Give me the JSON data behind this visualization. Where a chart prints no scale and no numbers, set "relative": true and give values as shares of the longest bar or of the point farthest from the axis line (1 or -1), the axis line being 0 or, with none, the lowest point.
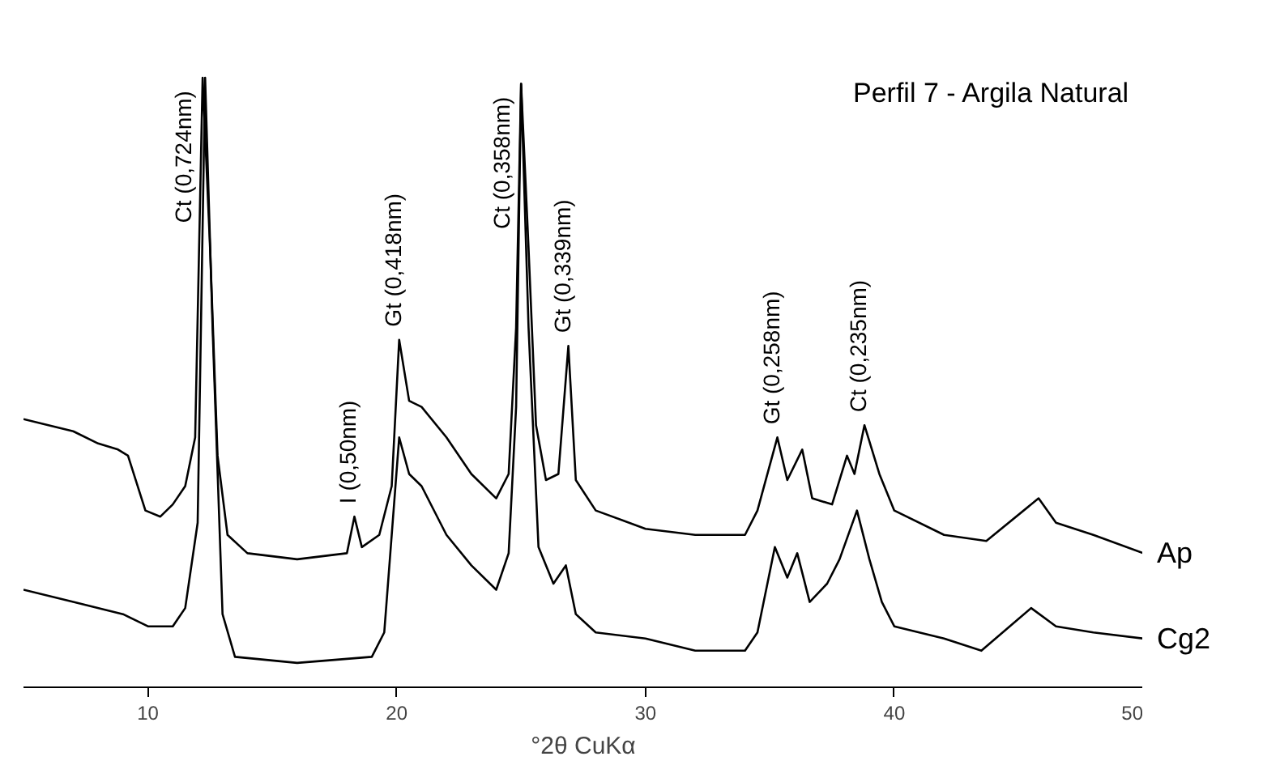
{
  "chart_data": {
    "type": "line",
    "title": "Perfil 7 - Argila Natural",
    "xlabel": "°2θ CuKα",
    "relative": true,
    "xlim": [
      5,
      50
    ],
    "xticks": [
      10,
      20,
      30,
      40,
      50
    ],
    "grid": false,
    "legend": false,
    "marker": "none",
    "line_style": "solid",
    "series": [
      {
        "name": "Ap",
        "color": "#000000",
        "x": [
          5,
          6,
          7,
          8,
          8.8,
          9.2,
          9.9,
          10.5,
          11,
          11.5,
          11.9,
          12.2,
          12.5,
          12.8,
          13.2,
          14,
          16,
          18,
          18.3,
          18.6,
          19.3,
          19.8,
          20.1,
          20.5,
          21,
          22,
          23,
          24,
          24.5,
          24.8,
          25.0,
          25.3,
          25.6,
          26,
          26.5,
          26.9,
          27.2,
          28,
          30,
          32,
          34,
          34.5,
          35.3,
          35.7,
          36.3,
          36.7,
          37.5,
          38.1,
          38.4,
          38.8,
          39.4,
          40,
          42,
          43.7,
          45.8,
          46.5,
          48,
          50
        ],
        "values": [
          0.44,
          0.43,
          0.42,
          0.4,
          0.39,
          0.38,
          0.29,
          0.28,
          0.3,
          0.33,
          0.41,
          1.0,
          0.72,
          0.38,
          0.25,
          0.22,
          0.21,
          0.22,
          0.28,
          0.23,
          0.25,
          0.33,
          0.57,
          0.47,
          0.46,
          0.41,
          0.35,
          0.31,
          0.35,
          0.59,
          0.99,
          0.72,
          0.43,
          0.34,
          0.35,
          0.56,
          0.34,
          0.29,
          0.26,
          0.25,
          0.25,
          0.29,
          0.41,
          0.34,
          0.39,
          0.31,
          0.3,
          0.38,
          0.35,
          0.43,
          0.35,
          0.29,
          0.25,
          0.24,
          0.31,
          0.27,
          0.25,
          0.22
        ]
      },
      {
        "name": "Cg2",
        "color": "#000000",
        "x": [
          5,
          7,
          9,
          10,
          11,
          11.5,
          12,
          12.3,
          12.6,
          13,
          13.5,
          16,
          19,
          19.5,
          19.8,
          20.1,
          20.5,
          21,
          22,
          23,
          24,
          24.5,
          24.8,
          25.0,
          25.3,
          25.7,
          26.3,
          26.8,
          27.2,
          28,
          30,
          32,
          34,
          34.5,
          35.2,
          35.7,
          36.1,
          36.6,
          37.3,
          37.8,
          38.5,
          39,
          39.5,
          40,
          42,
          43.5,
          45.5,
          46.5,
          48,
          50
        ],
        "values": [
          0.16,
          0.14,
          0.12,
          0.1,
          0.1,
          0.13,
          0.27,
          1.0,
          0.59,
          0.12,
          0.05,
          0.04,
          0.05,
          0.09,
          0.25,
          0.41,
          0.35,
          0.33,
          0.25,
          0.2,
          0.16,
          0.22,
          0.46,
          0.99,
          0.59,
          0.23,
          0.17,
          0.2,
          0.12,
          0.09,
          0.08,
          0.06,
          0.06,
          0.09,
          0.23,
          0.18,
          0.22,
          0.14,
          0.17,
          0.21,
          0.29,
          0.21,
          0.14,
          0.1,
          0.08,
          0.06,
          0.13,
          0.1,
          0.09,
          0.08
        ]
      }
    ],
    "annotations": [
      {
        "text": "Ct (0,724nm)",
        "x": 12.2,
        "y": 1.0
      },
      {
        "text": "I (0,50nm)",
        "x": 18.3,
        "y": 0.28
      },
      {
        "text": "Gt (0,418nm)",
        "x": 20.1,
        "y": 0.57
      },
      {
        "text": "Ct (0,358nm)",
        "x": 25.0,
        "y": 0.99
      },
      {
        "text": "Gt (0,339nm)",
        "x": 26.9,
        "y": 0.56
      },
      {
        "text": "Gt (0,258nm)",
        "x": 35.3,
        "y": 0.41
      },
      {
        "text": "Ct (0,235nm)",
        "x": 38.8,
        "y": 0.43
      }
    ]
  }
}
